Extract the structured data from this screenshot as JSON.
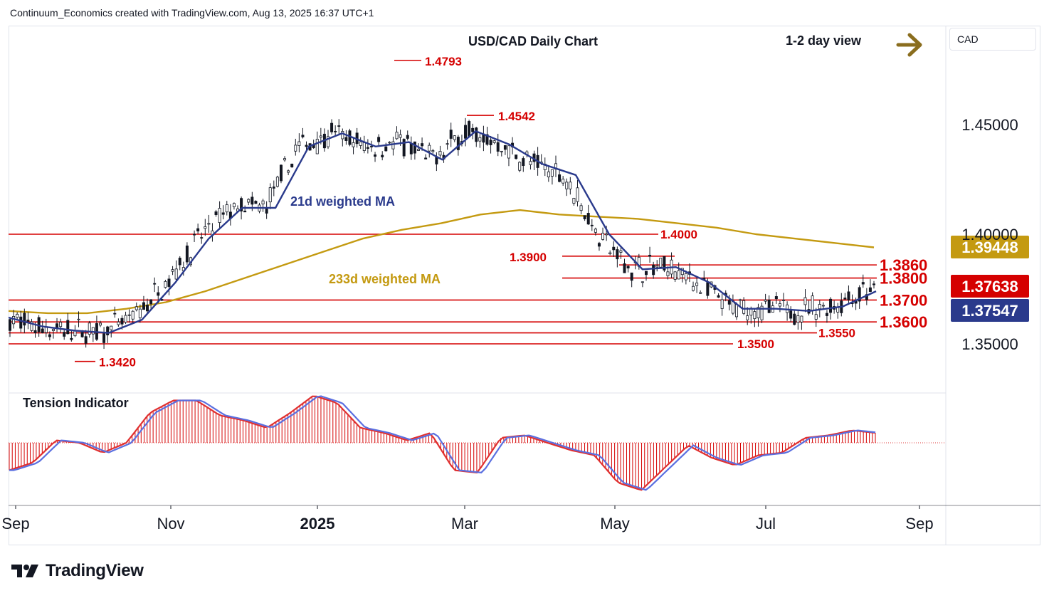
{
  "attribution": "Continuum_Economics created with TradingView.com, Aug 13, 2025 16:37 UTC+1",
  "brand": "TradingView",
  "currency_button": "CAD",
  "chart_data": {
    "type": "candlestick",
    "title": "USD/CAD Daily Chart",
    "view_label": "1-2 day view",
    "arrow_color": "#8a6d1e",
    "x_ticks": [
      "Sep",
      "Nov",
      "2025",
      "Mar",
      "May",
      "Jul",
      "Sep"
    ],
    "y_ticks": [
      "1.45000",
      "1.40000",
      "1.35000"
    ],
    "y_range": [
      1.325,
      1.498
    ],
    "colors": {
      "up": "#131722",
      "down": "#131722",
      "levels": "#d50000",
      "ma21": "#2a3a8c",
      "ma233": "#c49a11"
    },
    "horizontal_levels": [
      {
        "label": "1.3860",
        "value": 1.386
      },
      {
        "label": "1.3800",
        "value": 1.38
      },
      {
        "label": "1.3700",
        "value": 1.37
      },
      {
        "label": "1.3600",
        "value": 1.36
      },
      {
        "label": "1.3550",
        "value": 1.355
      },
      {
        "label": "1.3500",
        "value": 1.35
      },
      {
        "label": "1.3900",
        "value": 1.39
      },
      {
        "label": "1.4000",
        "value": 1.4
      }
    ],
    "swing_labels": [
      {
        "label": "1.4793",
        "value": 1.4793
      },
      {
        "label": "1.4542",
        "value": 1.4542
      },
      {
        "label": "1.3420",
        "value": 1.342
      }
    ],
    "price_badges": [
      {
        "label": "1.39448",
        "value": 1.39448,
        "bg": "#c49a11"
      },
      {
        "label": "1.37638",
        "value": 1.37638,
        "bg": "#d50000"
      },
      {
        "label": "1.37547",
        "value": 1.37547,
        "bg": "#2a3a8c"
      }
    ],
    "series": [
      {
        "name": "21d weighted MA",
        "values": [
          1.362,
          1.358,
          1.356,
          1.355,
          1.361,
          1.378,
          1.398,
          1.412,
          1.412,
          1.44,
          1.446,
          1.44,
          1.442,
          1.434,
          1.447,
          1.441,
          1.432,
          1.427,
          1.4,
          1.384,
          1.385,
          1.378,
          1.366,
          1.366,
          1.365,
          1.367,
          1.374
        ]
      },
      {
        "name": "233d weighted MA",
        "values": [
          1.365,
          1.364,
          1.364,
          1.366,
          1.369,
          1.374,
          1.38,
          1.386,
          1.392,
          1.398,
          1.402,
          1.405,
          1.409,
          1.411,
          1.409,
          1.408,
          1.407,
          1.405,
          1.403,
          1.4,
          1.398,
          1.396,
          1.394
        ]
      }
    ],
    "tension_indicator": {
      "title": "Tension Indicator",
      "values": [
        -0.55,
        -0.4,
        0.05,
        0.0,
        -0.2,
        0.0,
        0.6,
        0.85,
        0.85,
        0.55,
        0.45,
        0.3,
        0.6,
        0.95,
        0.8,
        0.3,
        0.2,
        0.05,
        0.2,
        -0.55,
        -0.6,
        0.1,
        0.15,
        0.0,
        -0.15,
        -0.25,
        -0.8,
        -0.95,
        -0.5,
        -0.05,
        -0.3,
        -0.45,
        -0.25,
        -0.2,
        0.1,
        0.15,
        0.25,
        0.2
      ]
    }
  }
}
